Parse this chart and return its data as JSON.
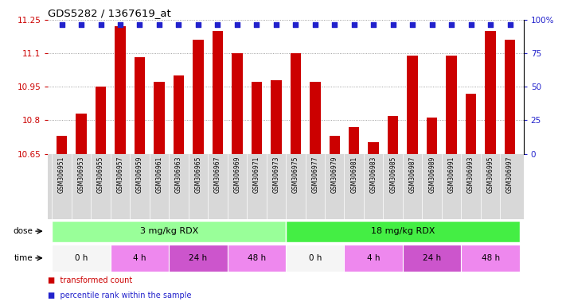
{
  "title": "GDS5282 / 1367619_at",
  "samples": [
    "GSM306951",
    "GSM306953",
    "GSM306955",
    "GSM306957",
    "GSM306959",
    "GSM306961",
    "GSM306963",
    "GSM306965",
    "GSM306967",
    "GSM306969",
    "GSM306971",
    "GSM306973",
    "GSM306975",
    "GSM306977",
    "GSM306979",
    "GSM306981",
    "GSM306983",
    "GSM306985",
    "GSM306987",
    "GSM306989",
    "GSM306991",
    "GSM306993",
    "GSM306995",
    "GSM306997"
  ],
  "red_values": [
    10.73,
    10.83,
    10.95,
    11.22,
    11.08,
    10.97,
    11.0,
    11.16,
    11.2,
    11.1,
    10.97,
    10.98,
    11.1,
    10.97,
    10.73,
    10.77,
    10.7,
    10.82,
    11.09,
    10.81,
    11.09,
    10.92,
    11.2,
    11.16
  ],
  "ylim_left": [
    10.65,
    11.25
  ],
  "ylim_right": [
    0,
    100
  ],
  "yticks_left": [
    10.65,
    10.8,
    10.95,
    11.1,
    11.25
  ],
  "ytick_labels_left": [
    "10.65",
    "10.8",
    "10.95",
    "11.1",
    "11.25"
  ],
  "yticks_right": [
    0,
    25,
    50,
    75,
    100
  ],
  "ytick_labels_right": [
    "0",
    "25",
    "50",
    "75",
    "100%"
  ],
  "bar_color": "#cc0000",
  "blue_marker_color": "#2222cc",
  "blue_marker_size": 22,
  "dose_items": [
    {
      "label": "3 mg/kg RDX",
      "start": 0,
      "end": 12,
      "color": "#99ff99"
    },
    {
      "label": "18 mg/kg RDX",
      "start": 12,
      "end": 24,
      "color": "#44ee44"
    }
  ],
  "time_items": [
    {
      "label": "0 h",
      "start": 0,
      "end": 3,
      "color": "#f5f5f5"
    },
    {
      "label": "4 h",
      "start": 3,
      "end": 6,
      "color": "#ee88ee"
    },
    {
      "label": "24 h",
      "start": 6,
      "end": 9,
      "color": "#cc55cc"
    },
    {
      "label": "48 h",
      "start": 9,
      "end": 12,
      "color": "#ee88ee"
    },
    {
      "label": "0 h",
      "start": 12,
      "end": 15,
      "color": "#f5f5f5"
    },
    {
      "label": "4 h",
      "start": 15,
      "end": 18,
      "color": "#ee88ee"
    },
    {
      "label": "24 h",
      "start": 18,
      "end": 21,
      "color": "#cc55cc"
    },
    {
      "label": "48 h",
      "start": 21,
      "end": 24,
      "color": "#ee88ee"
    }
  ],
  "grid_color": "#888888",
  "plot_bg": "#ffffff",
  "tick_label_bg": "#d8d8d8",
  "bar_width": 0.55
}
